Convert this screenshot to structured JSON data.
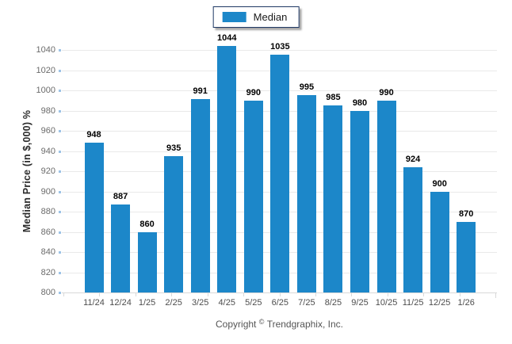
{
  "chart_data": {
    "type": "bar",
    "title": "",
    "legend": "Median",
    "legend_position": "top-center",
    "ylabel": "Median Price (in $,000) %",
    "xlabel": "",
    "categories": [
      "11/24",
      "12/24",
      "1/25",
      "2/25",
      "3/25",
      "4/25",
      "5/25",
      "6/25",
      "7/25",
      "8/25",
      "9/25",
      "10/25",
      "11/25",
      "12/25",
      "1/26"
    ],
    "values": [
      948,
      887,
      860,
      935,
      991,
      1044,
      990,
      1035,
      995,
      985,
      980,
      990,
      924,
      900,
      870
    ],
    "ylim": [
      800,
      1040
    ],
    "ytick_step": 20,
    "grid": true
  },
  "footer": {
    "copyright_word": "Copyright",
    "copyright_symbol": "©",
    "company": "Trendgraphix, Inc."
  },
  "colors": {
    "bar": "#1c87c9",
    "gridline": "#e9e9e9",
    "axis_line": "#d9d9d9",
    "y_tick_blue": "#9dc3e6",
    "y_tick_text": "#6b6b6b",
    "x_tick_text": "#4d4d4d",
    "value_label": "#000000",
    "legend_border": "#1f3864"
  }
}
